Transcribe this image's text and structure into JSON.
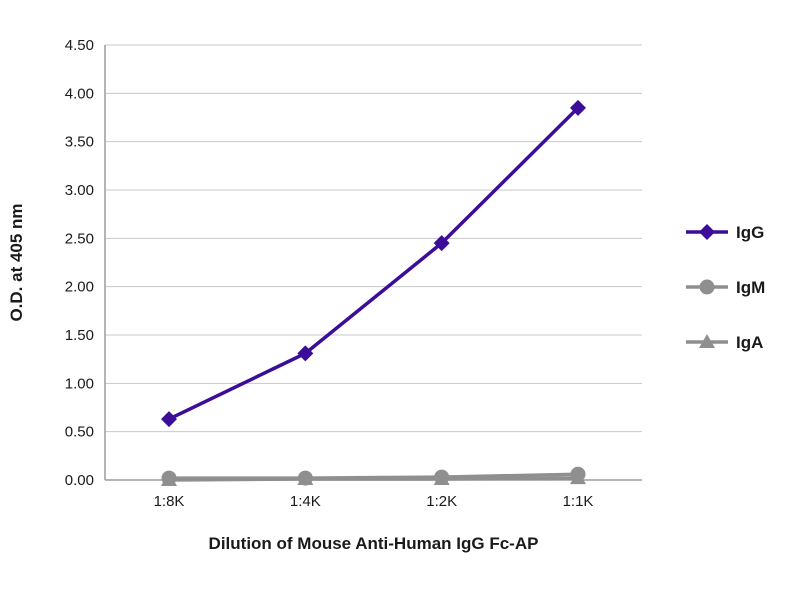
{
  "colors": {
    "igg_purple": "#3B0D99",
    "series_gray": "#8F8F8F",
    "gridline": "#C8C8C8",
    "axis": "#9B9B9B",
    "text": "#1A1A1A",
    "background": "#FFFFFF"
  },
  "chart_data": {
    "type": "line",
    "title": "",
    "categories": [
      "1:8K",
      "1:4K",
      "1:2K",
      "1:1K"
    ],
    "series": [
      {
        "name": "IgG",
        "marker": "diamond",
        "color": "#3B0D99",
        "values": [
          0.63,
          1.31,
          2.45,
          3.85
        ]
      },
      {
        "name": "IgM",
        "marker": "circle",
        "color": "#8F8F8F",
        "values": [
          0.02,
          0.02,
          0.03,
          0.06
        ]
      },
      {
        "name": "IgA",
        "marker": "triangle",
        "color": "#8F8F8F",
        "values": [
          0.0,
          0.01,
          0.01,
          0.02
        ]
      }
    ],
    "xlabel": "Dilution of Mouse Anti-Human IgG Fc-AP",
    "ylabel": "O.D. at 405 nm",
    "ylim": [
      0,
      4.5
    ],
    "ytick_step": 0.5,
    "ytick_format_decimals": 2,
    "grid": true,
    "legend_position": "right",
    "legend_entries": [
      "IgG",
      "IgM",
      "IgA"
    ]
  }
}
